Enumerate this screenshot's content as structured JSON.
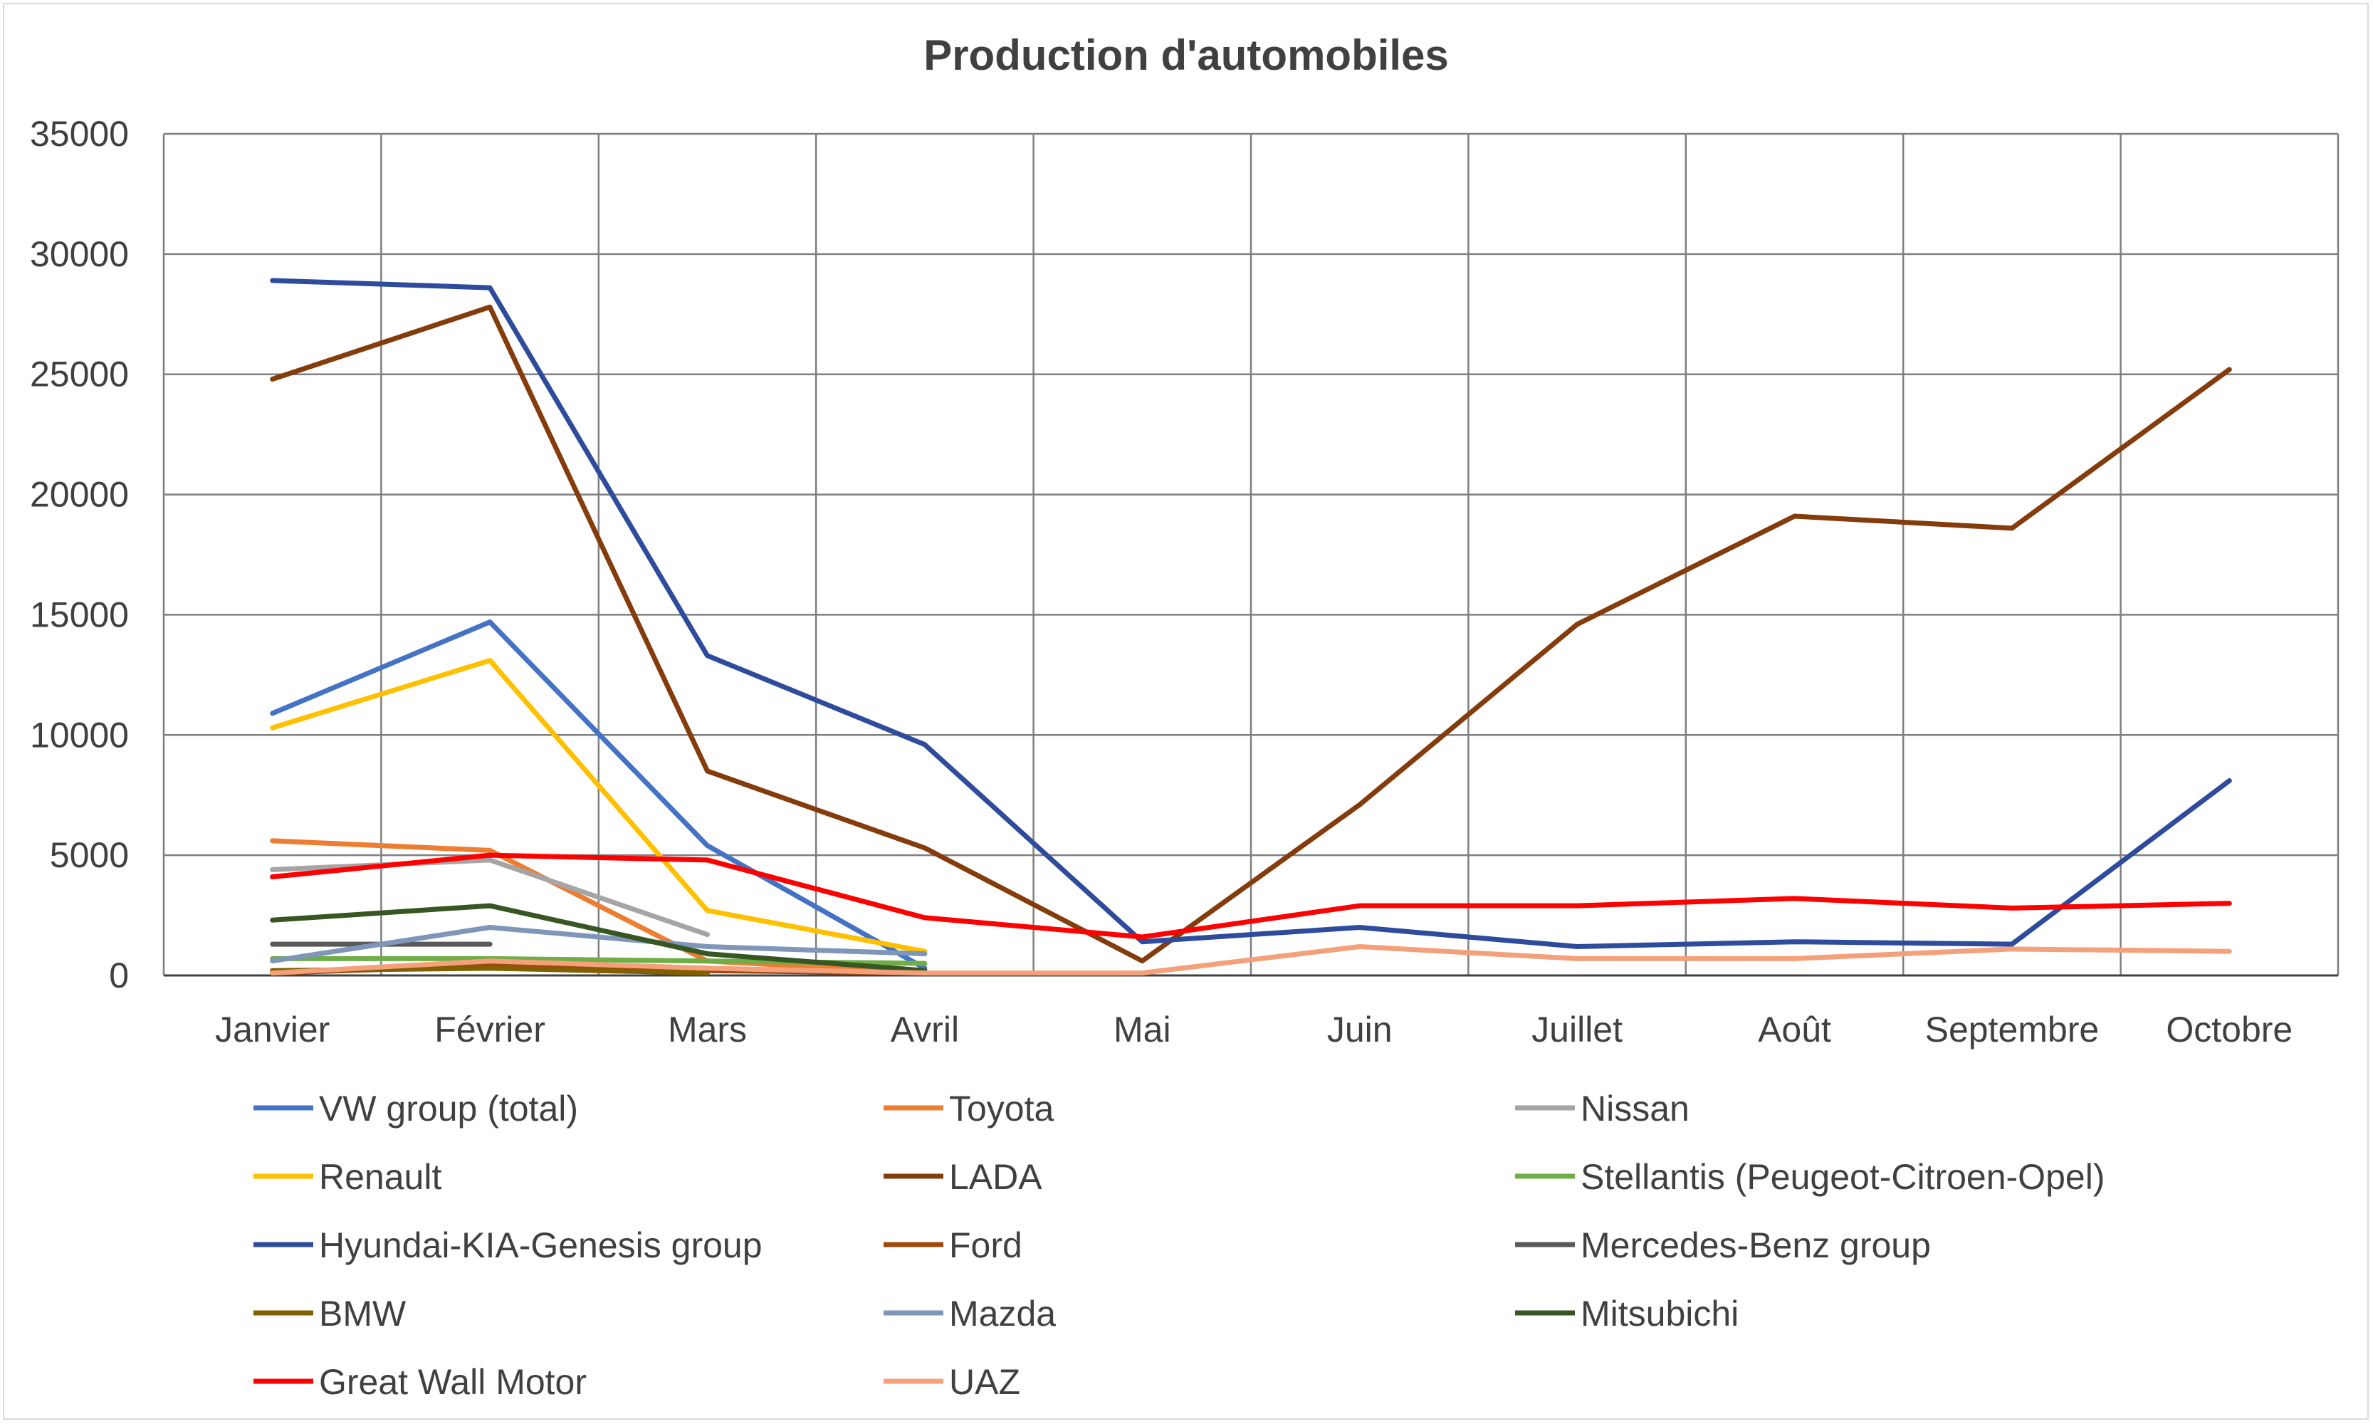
{
  "chart_data": {
    "type": "line",
    "title": "Production d'automobiles",
    "xlabel": "",
    "ylabel": "",
    "ylim": [
      0,
      35000
    ],
    "yticks": [
      "0",
      "5000",
      "10000",
      "15000",
      "20000",
      "25000",
      "30000",
      "35000"
    ],
    "grid": true,
    "legend_position": "bottom",
    "categories": [
      "Janvier",
      "Février",
      "Mars",
      "Avril",
      "Mai",
      "Juin",
      "Juillet",
      "Août",
      "Septembre",
      "Octobre"
    ],
    "series": [
      {
        "name": "VW group (total)",
        "color": "#4472c4",
        "values": [
          10900,
          14700,
          5400,
          300,
          null,
          null,
          null,
          null,
          null,
          null
        ]
      },
      {
        "name": "Toyota",
        "color": "#ed7d31",
        "values": [
          5600,
          5200,
          600,
          100,
          null,
          null,
          null,
          null,
          null,
          null
        ]
      },
      {
        "name": "Nissan",
        "color": "#a5a5a5",
        "values": [
          4400,
          4800,
          1700,
          null,
          null,
          null,
          null,
          null,
          null,
          null
        ]
      },
      {
        "name": "Renault",
        "color": "#ffc000",
        "values": [
          10300,
          13100,
          2700,
          1000,
          null,
          null,
          null,
          null,
          null,
          null
        ]
      },
      {
        "name": "LADA",
        "color": "#843c0c",
        "values": [
          24800,
          27800,
          8500,
          5300,
          600,
          7100,
          14600,
          19100,
          18600,
          25200
        ]
      },
      {
        "name": "Stellantis (Peugeot-Citroen-Opel)",
        "color": "#70ad47",
        "values": [
          700,
          700,
          600,
          500,
          null,
          null,
          null,
          null,
          null,
          null
        ]
      },
      {
        "name": "Hyundai-KIA-Genesis group",
        "color": "#2f4b9c",
        "values": [
          28900,
          28600,
          13300,
          9600,
          1400,
          2000,
          1200,
          1400,
          1300,
          8100
        ]
      },
      {
        "name": "Ford",
        "color": "#9e480e",
        "values": [
          100,
          400,
          200,
          100,
          null,
          null,
          null,
          null,
          null,
          null
        ]
      },
      {
        "name": "Mercedes-Benz group",
        "color": "#595959",
        "values": [
          1300,
          1300,
          null,
          null,
          null,
          null,
          null,
          null,
          null,
          null
        ]
      },
      {
        "name": "BMW",
        "color": "#806000",
        "values": [
          200,
          300,
          100,
          null,
          null,
          null,
          null,
          null,
          null,
          null
        ]
      },
      {
        "name": "Mazda",
        "color": "#7f96b9",
        "values": [
          600,
          2000,
          1200,
          900,
          null,
          null,
          null,
          null,
          null,
          null
        ]
      },
      {
        "name": "Mitsubichi",
        "color": "#375623",
        "values": [
          2300,
          2900,
          900,
          200,
          null,
          null,
          null,
          null,
          null,
          null
        ]
      },
      {
        "name": "Great Wall Motor",
        "color": "#ff0000",
        "values": [
          4100,
          5000,
          4800,
          2400,
          1600,
          2900,
          2900,
          3200,
          2800,
          3000
        ]
      },
      {
        "name": "UAZ",
        "color": "#f4a07a",
        "values": [
          100,
          600,
          300,
          100,
          100,
          1200,
          700,
          700,
          1100,
          1000
        ]
      }
    ]
  }
}
